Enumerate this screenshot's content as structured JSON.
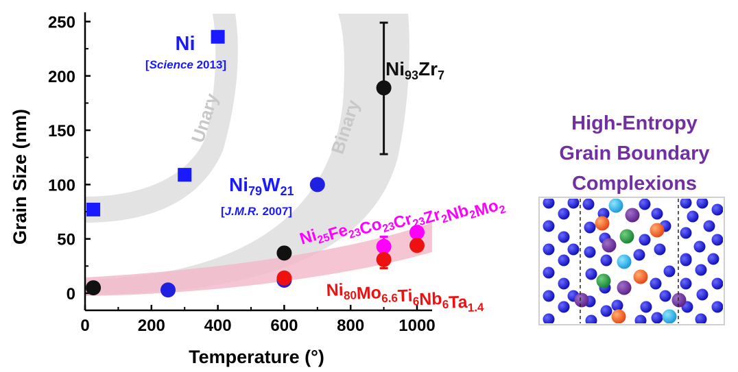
{
  "chart_data": {
    "type": "scatter",
    "xlabel": "Temperature (°)",
    "ylabel": "Grain Size (nm)",
    "xlim": [
      0,
      1050
    ],
    "ylim": [
      -10,
      250
    ],
    "x_ticks": [
      0,
      200,
      400,
      600,
      800,
      1000
    ],
    "y_ticks": [
      0,
      50,
      100,
      150,
      200,
      250
    ],
    "series": [
      {
        "name": "Ni",
        "marker": "square",
        "color": "#1a1aff",
        "points": [
          {
            "x": 25,
            "y": 77
          },
          {
            "x": 300,
            "y": 109
          },
          {
            "x": 400,
            "y": 236
          }
        ]
      },
      {
        "name": "Ni79W21",
        "marker": "circle",
        "color": "#2020e0",
        "points": [
          {
            "x": 250,
            "y": 3
          },
          {
            "x": 600,
            "y": 12
          },
          {
            "x": 700,
            "y": 100
          }
        ]
      },
      {
        "name": "Ni93Zr7",
        "marker": "circle",
        "color": "#111111",
        "points": [
          {
            "x": 25,
            "y": 5
          },
          {
            "x": 600,
            "y": 37
          },
          {
            "x": 900,
            "y": 189,
            "err_low": 61,
            "err_high": 60
          }
        ]
      },
      {
        "name": "Ni25Fe23Co23Cr23Zr2Nb2Mo2",
        "marker": "circle",
        "color": "#ff00ff",
        "points": [
          {
            "x": 900,
            "y": 43,
            "err_low": 7,
            "err_high": 9
          },
          {
            "x": 1000,
            "y": 56
          }
        ]
      },
      {
        "name": "Ni80Mo6.6Ti6Nb6Ta1.4",
        "marker": "circle",
        "color": "#ee1111",
        "points": [
          {
            "x": 600,
            "y": 14
          },
          {
            "x": 900,
            "y": 31,
            "err_low": 8,
            "err_high": 7
          },
          {
            "x": 1000,
            "y": 44
          }
        ]
      }
    ],
    "bands": [
      {
        "label": "Unary",
        "color": "#e0e0e0"
      },
      {
        "label": "Binary",
        "color": "#e0e0e0"
      },
      {
        "label": "",
        "color": "#f5c6d3"
      }
    ],
    "annotations": {
      "ni": {
        "text": "Ni",
        "ref": "[Science 2013]",
        "ref_italic": "Science",
        "ref_rest": " 2013]"
      },
      "niw": {
        "base": "Ni",
        "sub1": "79",
        "mid": "W",
        "sub2": "21",
        "ref_italic": "J.M.R.",
        "ref_rest": " 2007]"
      },
      "nizr": {
        "base": "Ni",
        "sub1": "93",
        "mid": "Zr",
        "sub2": "7"
      },
      "hea_pink": [
        [
          "Ni",
          "25"
        ],
        [
          "Fe",
          "23"
        ],
        [
          "Co",
          "23"
        ],
        [
          "Cr",
          "23"
        ],
        [
          "Zr",
          "2"
        ],
        [
          "Nb",
          "2"
        ],
        [
          "Mo",
          "2"
        ]
      ],
      "hea_red": [
        [
          "Ni",
          "80"
        ],
        [
          "Mo",
          "6.6"
        ],
        [
          "Ti",
          "6"
        ],
        [
          "Nb",
          "6"
        ],
        [
          "Ta",
          "1.4"
        ]
      ]
    }
  },
  "inset": {
    "title_lines": [
      "High-Entropy",
      "Grain Boundary",
      "Complexions"
    ],
    "atom_colors": {
      "matrix": "#1010d0",
      "cyan": "#20b0e8",
      "purple": "#7030a0",
      "green": "#20a040",
      "orange": "#ff6a20"
    }
  }
}
